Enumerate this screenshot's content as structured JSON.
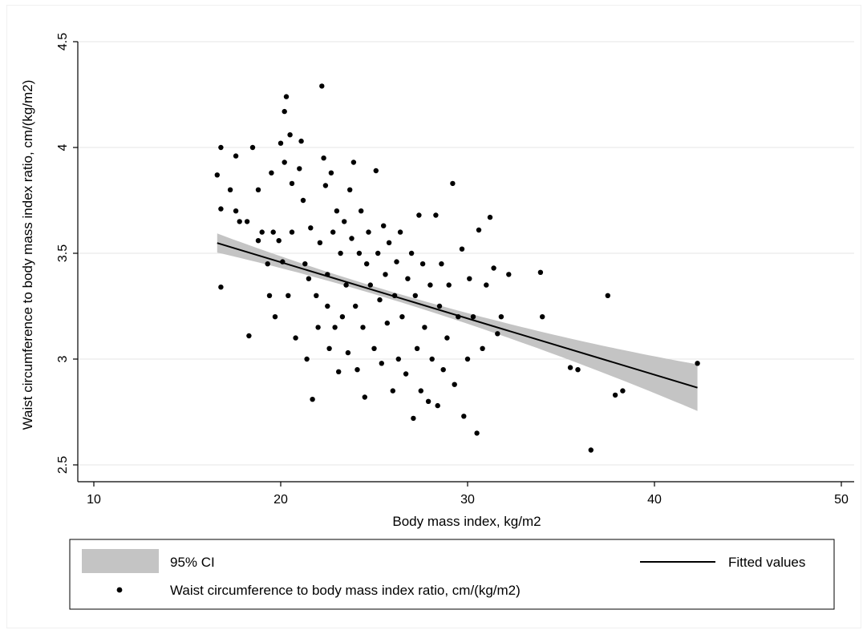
{
  "chart_data": {
    "type": "scatter",
    "xlabel": "Body mass index, kg/m2",
    "ylabel": "Waist circumference to body mass index ratio, cm/(kg/m2)",
    "xlim": [
      10,
      50
    ],
    "ylim": [
      2.5,
      4.5
    ],
    "x_ticks": [
      "10",
      "20",
      "30",
      "40",
      "50"
    ],
    "y_ticks": [
      "2.5",
      "3",
      "3.5",
      "4",
      "4.5"
    ],
    "grid": "horizontal",
    "legend_position": "bottom",
    "fit": {
      "slope": -0.0266,
      "intercept": 3.99,
      "x_range": [
        16.6,
        42.3
      ],
      "ci_half_width_at_ends": [
        0.045,
        0.11
      ],
      "ci_x_center": 25.2,
      "ci_half_width_min": 0.018
    },
    "series": [
      {
        "name": "Waist circumference to body mass index ratio, cm/(kg/m2)",
        "kind": "scatter",
        "points": [
          [
            16.6,
            3.87
          ],
          [
            16.8,
            4.0
          ],
          [
            16.8,
            3.71
          ],
          [
            16.8,
            3.34
          ],
          [
            17.3,
            3.8
          ],
          [
            17.6,
            3.96
          ],
          [
            17.6,
            3.7
          ],
          [
            17.8,
            3.65
          ],
          [
            18.2,
            3.65
          ],
          [
            18.3,
            3.11
          ],
          [
            18.5,
            4.0
          ],
          [
            18.8,
            3.8
          ],
          [
            18.8,
            3.56
          ],
          [
            19.0,
            3.6
          ],
          [
            19.3,
            3.45
          ],
          [
            19.4,
            3.3
          ],
          [
            19.5,
            3.88
          ],
          [
            19.6,
            3.6
          ],
          [
            19.7,
            3.2
          ],
          [
            19.9,
            3.56
          ],
          [
            20.0,
            4.02
          ],
          [
            20.1,
            3.46
          ],
          [
            20.2,
            4.17
          ],
          [
            20.2,
            3.93
          ],
          [
            20.3,
            4.24
          ],
          [
            20.4,
            3.3
          ],
          [
            20.5,
            4.06
          ],
          [
            20.6,
            3.83
          ],
          [
            20.6,
            3.6
          ],
          [
            20.8,
            3.1
          ],
          [
            21.0,
            3.9
          ],
          [
            21.1,
            4.03
          ],
          [
            21.2,
            3.75
          ],
          [
            21.3,
            3.45
          ],
          [
            21.4,
            3.0
          ],
          [
            21.5,
            3.38
          ],
          [
            21.6,
            3.62
          ],
          [
            21.7,
            2.81
          ],
          [
            21.9,
            3.3
          ],
          [
            22.0,
            3.15
          ],
          [
            22.1,
            3.55
          ],
          [
            22.2,
            4.29
          ],
          [
            22.3,
            3.95
          ],
          [
            22.4,
            3.82
          ],
          [
            22.5,
            3.25
          ],
          [
            22.5,
            3.4
          ],
          [
            22.6,
            3.05
          ],
          [
            22.7,
            3.88
          ],
          [
            22.8,
            3.6
          ],
          [
            22.9,
            3.15
          ],
          [
            23.0,
            3.7
          ],
          [
            23.1,
            2.94
          ],
          [
            23.2,
            3.5
          ],
          [
            23.3,
            3.2
          ],
          [
            23.4,
            3.65
          ],
          [
            23.5,
            3.35
          ],
          [
            23.6,
            3.03
          ],
          [
            23.7,
            3.8
          ],
          [
            23.8,
            3.57
          ],
          [
            23.9,
            3.93
          ],
          [
            24.0,
            3.25
          ],
          [
            24.1,
            2.95
          ],
          [
            24.2,
            3.5
          ],
          [
            24.3,
            3.7
          ],
          [
            24.4,
            3.15
          ],
          [
            24.5,
            2.82
          ],
          [
            24.6,
            3.45
          ],
          [
            24.7,
            3.6
          ],
          [
            24.8,
            3.35
          ],
          [
            25.0,
            3.05
          ],
          [
            25.1,
            3.89
          ],
          [
            25.2,
            3.5
          ],
          [
            25.3,
            3.28
          ],
          [
            25.4,
            2.98
          ],
          [
            25.5,
            3.63
          ],
          [
            25.6,
            3.4
          ],
          [
            25.7,
            3.17
          ],
          [
            25.8,
            3.55
          ],
          [
            26.0,
            2.85
          ],
          [
            26.1,
            3.3
          ],
          [
            26.2,
            3.46
          ],
          [
            26.3,
            3.0
          ],
          [
            26.4,
            3.6
          ],
          [
            26.5,
            3.2
          ],
          [
            26.7,
            2.93
          ],
          [
            26.8,
            3.38
          ],
          [
            27.0,
            3.5
          ],
          [
            27.1,
            2.72
          ],
          [
            27.2,
            3.3
          ],
          [
            27.3,
            3.05
          ],
          [
            27.4,
            3.68
          ],
          [
            27.5,
            2.85
          ],
          [
            27.6,
            3.45
          ],
          [
            27.7,
            3.15
          ],
          [
            27.9,
            2.8
          ],
          [
            28.0,
            3.35
          ],
          [
            28.1,
            3.0
          ],
          [
            28.3,
            3.68
          ],
          [
            28.4,
            2.78
          ],
          [
            28.5,
            3.25
          ],
          [
            28.6,
            3.45
          ],
          [
            28.7,
            2.95
          ],
          [
            28.9,
            3.1
          ],
          [
            29.0,
            3.35
          ],
          [
            29.2,
            3.83
          ],
          [
            29.3,
            2.88
          ],
          [
            29.5,
            3.2
          ],
          [
            29.7,
            3.52
          ],
          [
            29.8,
            2.73
          ],
          [
            30.0,
            3.0
          ],
          [
            30.1,
            3.38
          ],
          [
            30.3,
            3.2
          ],
          [
            30.5,
            2.65
          ],
          [
            30.6,
            3.61
          ],
          [
            30.8,
            3.05
          ],
          [
            31.0,
            3.35
          ],
          [
            31.2,
            3.67
          ],
          [
            31.4,
            3.43
          ],
          [
            31.6,
            3.12
          ],
          [
            31.8,
            3.2
          ],
          [
            32.2,
            3.4
          ],
          [
            33.9,
            3.41
          ],
          [
            34.0,
            3.2
          ],
          [
            35.5,
            2.96
          ],
          [
            35.9,
            2.95
          ],
          [
            36.6,
            2.57
          ],
          [
            37.5,
            3.3
          ],
          [
            37.9,
            2.83
          ],
          [
            38.3,
            2.85
          ],
          [
            42.3,
            2.98
          ]
        ]
      },
      {
        "name": "Fitted values",
        "kind": "line"
      },
      {
        "name": "95% CI",
        "kind": "band"
      }
    ]
  }
}
